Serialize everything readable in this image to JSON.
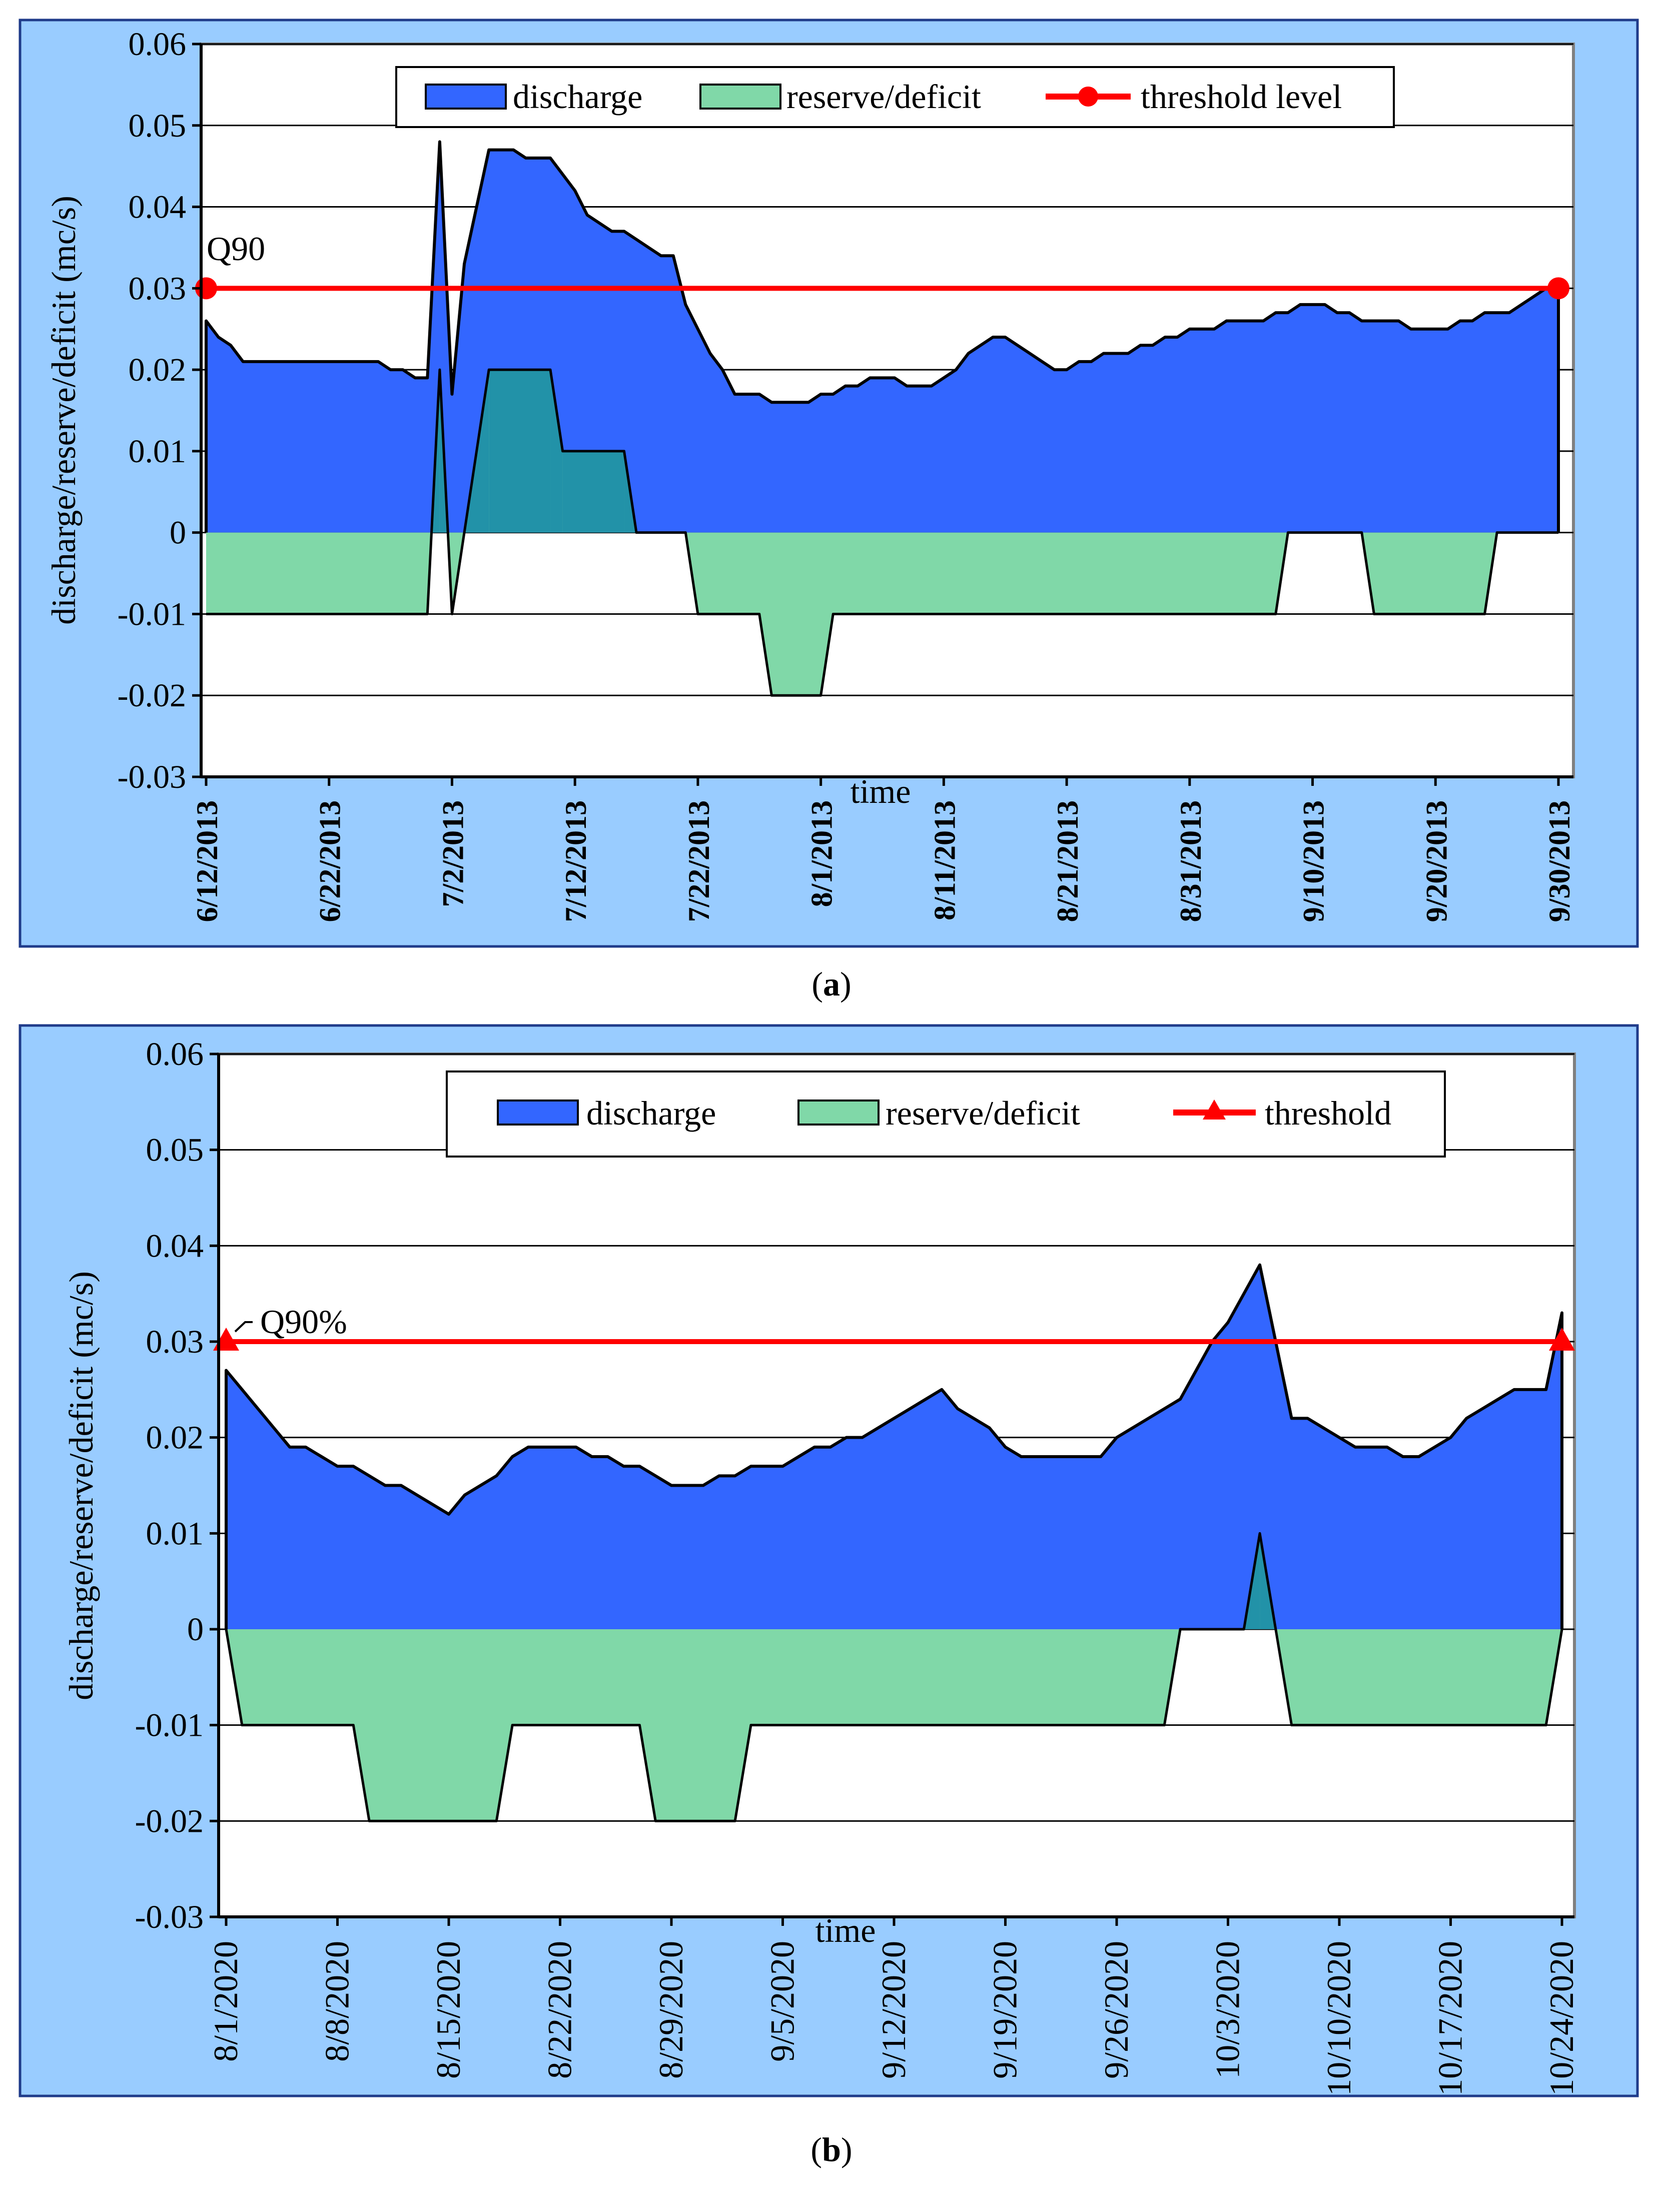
{
  "chart_data": [
    {
      "type": "area",
      "panel_label": "(a)",
      "panel_letter": "a",
      "xlabel": "time",
      "ylabel": "discharge/reserve/deficit (mc/s)",
      "ylim": [
        -0.03,
        0.06
      ],
      "yticks": [
        "0.06",
        "0.05",
        "0.04",
        "0.03",
        "0.02",
        "0.01",
        "0",
        "-0.01",
        "-0.02",
        "-0.03"
      ],
      "x_start": "6/12/2013",
      "x_days": 110,
      "xtick_labels": [
        "6/12/2013",
        "6/22/2013",
        "7/2/2013",
        "7/12/2013",
        "7/22/2013",
        "8/1/2013",
        "8/11/2013",
        "8/21/2013",
        "8/31/2013",
        "9/10/2013",
        "9/20/2013",
        "9/30/2013"
      ],
      "xtick_days": [
        0,
        10,
        20,
        30,
        40,
        50,
        60,
        70,
        80,
        90,
        100,
        110
      ],
      "legend": [
        "discharge",
        "reserve/deficit",
        "threshold level"
      ],
      "threshold_marker": "circle",
      "threshold_annotation": "Q90",
      "series": [
        {
          "name": "discharge",
          "x_days": [
            0,
            1,
            2,
            3,
            4,
            5,
            6,
            7,
            8,
            9,
            10,
            11,
            12,
            13,
            14,
            15,
            16,
            17,
            18,
            19,
            20,
            21,
            22,
            23,
            24,
            25,
            26,
            27,
            28,
            29,
            30,
            31,
            32,
            33,
            34,
            35,
            36,
            37,
            38,
            39,
            40,
            41,
            42,
            43,
            44,
            45,
            46,
            47,
            48,
            49,
            50,
            51,
            52,
            53,
            54,
            55,
            56,
            57,
            58,
            59,
            60,
            61,
            62,
            63,
            64,
            65,
            66,
            67,
            68,
            69,
            70,
            71,
            72,
            73,
            74,
            75,
            76,
            77,
            78,
            79,
            80,
            81,
            82,
            83,
            84,
            85,
            86,
            87,
            88,
            89,
            90,
            91,
            92,
            93,
            94,
            95,
            96,
            97,
            98,
            99,
            100,
            101,
            102,
            103,
            104,
            105,
            106,
            107,
            108,
            109,
            110
          ],
          "values": [
            0.026,
            0.024,
            0.023,
            0.021,
            0.021,
            0.021,
            0.021,
            0.021,
            0.021,
            0.021,
            0.021,
            0.021,
            0.021,
            0.021,
            0.021,
            0.02,
            0.02,
            0.019,
            0.019,
            0.048,
            0.017,
            0.033,
            0.04,
            0.047,
            0.047,
            0.047,
            0.046,
            0.046,
            0.046,
            0.044,
            0.042,
            0.039,
            0.038,
            0.037,
            0.037,
            0.036,
            0.035,
            0.034,
            0.034,
            0.028,
            0.025,
            0.022,
            0.02,
            0.017,
            0.017,
            0.017,
            0.016,
            0.016,
            0.016,
            0.016,
            0.017,
            0.017,
            0.018,
            0.018,
            0.019,
            0.019,
            0.019,
            0.018,
            0.018,
            0.018,
            0.019,
            0.02,
            0.022,
            0.023,
            0.024,
            0.024,
            0.023,
            0.022,
            0.021,
            0.02,
            0.02,
            0.021,
            0.021,
            0.022,
            0.022,
            0.022,
            0.023,
            0.023,
            0.024,
            0.024,
            0.025,
            0.025,
            0.025,
            0.026,
            0.026,
            0.026,
            0.026,
            0.027,
            0.027,
            0.028,
            0.028,
            0.028,
            0.027,
            0.027,
            0.026,
            0.026,
            0.026,
            0.026,
            0.025,
            0.025,
            0.025,
            0.025,
            0.026,
            0.026,
            0.027,
            0.027,
            0.027,
            0.028,
            0.029,
            0.03,
            0.03
          ]
        },
        {
          "name": "reserve/deficit",
          "x_days": [
            0,
            18,
            19,
            20,
            21,
            23,
            28,
            29,
            34,
            35,
            39,
            40,
            45,
            46,
            50,
            51,
            52,
            87,
            88,
            89,
            94,
            95,
            104,
            105,
            110
          ],
          "values": [
            -0.01,
            -0.01,
            0.02,
            -0.01,
            0,
            0.02,
            0.02,
            0.01,
            0.01,
            0,
            0,
            -0.01,
            -0.01,
            -0.02,
            -0.02,
            -0.01,
            -0.01,
            -0.01,
            0,
            0,
            0,
            -0.01,
            -0.01,
            0,
            0
          ]
        },
        {
          "name": "threshold level",
          "value": 0.03
        }
      ]
    },
    {
      "type": "area",
      "panel_label": "(b)",
      "panel_letter": "b",
      "xlabel": "time",
      "ylabel": "discharge/reserve/deficit (mc/s)",
      "ylim": [
        -0.03,
        0.06
      ],
      "yticks": [
        "0.06",
        "0.05",
        "0.04",
        "0.03",
        "0.02",
        "0.01",
        "0",
        "-0.01",
        "-0.02",
        "-0.03"
      ],
      "x_start": "8/1/2020",
      "x_days": 84,
      "xtick_labels": [
        "8/1/2020",
        "8/8/2020",
        "8/15/2020",
        "8/22/2020",
        "8/29/2020",
        "9/5/2020",
        "9/12/2020",
        "9/19/2020",
        "9/26/2020",
        "10/3/2020",
        "10/10/2020",
        "10/17/2020",
        "10/24/2020"
      ],
      "xtick_days": [
        0,
        7,
        14,
        21,
        28,
        35,
        42,
        49,
        56,
        63,
        70,
        77,
        84
      ],
      "legend": [
        "discharge",
        "reserve/deficit",
        "threshold"
      ],
      "threshold_marker": "triangle",
      "threshold_annotation": "Q90%",
      "series": [
        {
          "name": "discharge",
          "x_days": [
            0,
            1,
            2,
            3,
            4,
            5,
            6,
            7,
            8,
            9,
            10,
            11,
            12,
            13,
            14,
            15,
            16,
            17,
            18,
            19,
            20,
            21,
            22,
            23,
            24,
            25,
            26,
            27,
            28,
            29,
            30,
            31,
            32,
            33,
            34,
            35,
            36,
            37,
            38,
            39,
            40,
            41,
            42,
            43,
            44,
            45,
            46,
            47,
            48,
            49,
            50,
            51,
            52,
            53,
            54,
            55,
            56,
            57,
            58,
            59,
            60,
            61,
            62,
            63,
            64,
            65,
            66,
            67,
            68,
            69,
            70,
            71,
            72,
            73,
            74,
            75,
            76,
            77,
            78,
            79,
            80,
            81,
            82,
            83,
            84
          ],
          "values": [
            0.027,
            0.025,
            0.023,
            0.021,
            0.019,
            0.019,
            0.018,
            0.017,
            0.017,
            0.016,
            0.015,
            0.015,
            0.014,
            0.013,
            0.012,
            0.014,
            0.015,
            0.016,
            0.018,
            0.019,
            0.019,
            0.019,
            0.019,
            0.018,
            0.018,
            0.017,
            0.017,
            0.016,
            0.015,
            0.015,
            0.015,
            0.016,
            0.016,
            0.017,
            0.017,
            0.017,
            0.018,
            0.019,
            0.019,
            0.02,
            0.02,
            0.021,
            0.022,
            0.023,
            0.024,
            0.025,
            0.023,
            0.022,
            0.021,
            0.019,
            0.018,
            0.018,
            0.018,
            0.018,
            0.018,
            0.018,
            0.02,
            0.021,
            0.022,
            0.023,
            0.024,
            0.027,
            0.03,
            0.032,
            0.035,
            0.038,
            0.03,
            0.022,
            0.022,
            0.021,
            0.02,
            0.019,
            0.019,
            0.019,
            0.018,
            0.018,
            0.019,
            0.02,
            0.022,
            0.023,
            0.024,
            0.025,
            0.025,
            0.025,
            0.033
          ]
        },
        {
          "name": "reserve/deficit",
          "x_days": [
            0,
            1,
            8,
            9,
            17,
            18,
            26,
            27,
            32,
            33,
            59,
            60,
            63,
            64,
            65,
            66,
            67,
            83,
            84
          ],
          "values": [
            0,
            -0.01,
            -0.01,
            -0.02,
            -0.02,
            -0.01,
            -0.01,
            -0.02,
            -0.02,
            -0.01,
            -0.01,
            0,
            0,
            0,
            0.01,
            0,
            -0.01,
            -0.01,
            0
          ]
        },
        {
          "name": "threshold",
          "value": 0.03
        }
      ]
    }
  ]
}
